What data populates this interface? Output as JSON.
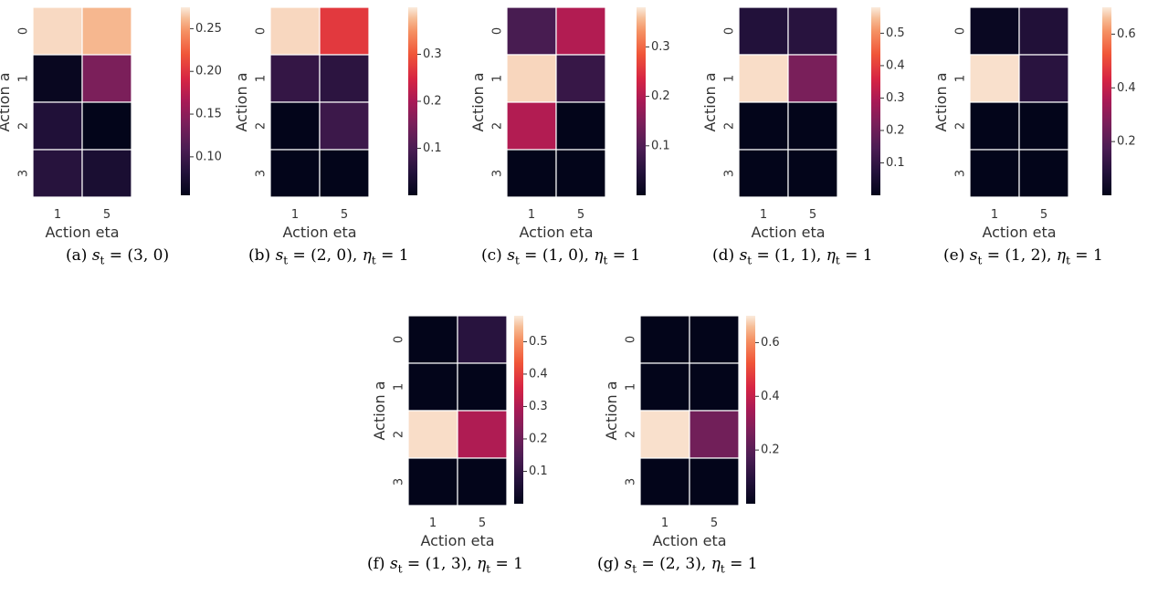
{
  "chart_data": [
    {
      "type": "heatmap",
      "caption": {
        "tag": "(a)",
        "s_label": "s",
        "s_sub": "t",
        "s_value": "= (3, 0)",
        "eta_label": "",
        "eta_sub": "",
        "eta_value": ""
      },
      "xlabel": "Action eta",
      "ylabel": "Action a",
      "x_categories": [
        "1",
        "5"
      ],
      "y_categories": [
        "0",
        "1",
        "2",
        "3"
      ],
      "values": [
        [
          0.27,
          0.26
        ],
        [
          0.06,
          0.14
        ],
        [
          0.08,
          0.05
        ],
        [
          0.085,
          0.075
        ]
      ],
      "colorbar": {
        "range": [
          0.055,
          0.275
        ],
        "ticks": [
          0.1,
          0.15,
          0.2,
          0.25
        ],
        "tick_labels": [
          "0.10",
          "0.15",
          "0.20",
          "0.25"
        ]
      }
    },
    {
      "type": "heatmap",
      "caption": {
        "tag": "(b)",
        "s_label": "s",
        "s_sub": "t",
        "s_value": "= (2, 0),",
        "eta_label": "η",
        "eta_sub": "t",
        "eta_value": "= 1"
      },
      "xlabel": "Action eta",
      "ylabel": "Action a",
      "x_categories": [
        "1",
        "5"
      ],
      "y_categories": [
        "0",
        "1",
        "2",
        "3"
      ],
      "values": [
        [
          0.39,
          0.27
        ],
        [
          0.07,
          0.06
        ],
        [
          0.0,
          0.08
        ],
        [
          0.0,
          0.0
        ]
      ],
      "colorbar": {
        "range": [
          0.0,
          0.4
        ],
        "ticks": [
          0.1,
          0.2,
          0.3
        ],
        "tick_labels": [
          "0.1",
          "0.2",
          "0.3"
        ]
      }
    },
    {
      "type": "heatmap",
      "caption": {
        "tag": "(c)",
        "s_label": "s",
        "s_sub": "t",
        "s_value": "= (1, 0),",
        "eta_label": "η",
        "eta_sub": "t",
        "eta_value": "= 1"
      },
      "xlabel": "Action eta",
      "ylabel": "Action a",
      "x_categories": [
        "1",
        "5"
      ],
      "y_categories": [
        "0",
        "1",
        "2",
        "3"
      ],
      "values": [
        [
          0.09,
          0.2
        ],
        [
          0.37,
          0.07
        ],
        [
          0.2,
          0.0
        ],
        [
          0.0,
          0.0
        ]
      ],
      "colorbar": {
        "range": [
          0.0,
          0.38
        ],
        "ticks": [
          0.1,
          0.2,
          0.3
        ],
        "tick_labels": [
          "0.1",
          "0.2",
          "0.3"
        ]
      }
    },
    {
      "type": "heatmap",
      "caption": {
        "tag": "(d)",
        "s_label": "s",
        "s_sub": "t",
        "s_value": "= (1, 1),",
        "eta_label": "η",
        "eta_sub": "t",
        "eta_value": "= 1"
      },
      "xlabel": "Action eta",
      "ylabel": "Action a",
      "x_categories": [
        "1",
        "5"
      ],
      "y_categories": [
        "0",
        "1",
        "2",
        "3"
      ],
      "values": [
        [
          0.07,
          0.08
        ],
        [
          0.57,
          0.22
        ],
        [
          0.0,
          0.0
        ],
        [
          0.0,
          0.0
        ]
      ],
      "colorbar": {
        "range": [
          0.0,
          0.58
        ],
        "ticks": [
          0.1,
          0.2,
          0.3,
          0.4,
          0.5
        ],
        "tick_labels": [
          "0.1",
          "0.2",
          "0.3",
          "0.4",
          "0.5"
        ]
      }
    },
    {
      "type": "heatmap",
      "caption": {
        "tag": "(e)",
        "s_label": "s",
        "s_sub": "t",
        "s_value": "= (1, 2),",
        "eta_label": "η",
        "eta_sub": "t",
        "eta_value": "= 1"
      },
      "xlabel": "Action eta",
      "ylabel": "Action a",
      "x_categories": [
        "1",
        "5"
      ],
      "y_categories": [
        "0",
        "1",
        "2",
        "3"
      ],
      "values": [
        [
          0.02,
          0.08
        ],
        [
          0.69,
          0.1
        ],
        [
          0.0,
          0.0
        ],
        [
          0.0,
          0.0
        ]
      ],
      "colorbar": {
        "range": [
          0.0,
          0.7
        ],
        "ticks": [
          0.2,
          0.4,
          0.6
        ],
        "tick_labels": [
          "0.2",
          "0.4",
          "0.6"
        ]
      }
    },
    {
      "type": "heatmap",
      "caption": {
        "tag": "(f)",
        "s_label": "s",
        "s_sub": "t",
        "s_value": "= (1, 3),",
        "eta_label": "η",
        "eta_sub": "t",
        "eta_value": "= 1"
      },
      "xlabel": "Action eta",
      "ylabel": "Action a",
      "x_categories": [
        "1",
        "5"
      ],
      "y_categories": [
        "0",
        "1",
        "2",
        "3"
      ],
      "values": [
        [
          0.0,
          0.08
        ],
        [
          0.0,
          0.0
        ],
        [
          0.57,
          0.3
        ],
        [
          0.0,
          0.0
        ]
      ],
      "colorbar": {
        "range": [
          0.0,
          0.58
        ],
        "ticks": [
          0.1,
          0.2,
          0.3,
          0.4,
          0.5
        ],
        "tick_labels": [
          "0.1",
          "0.2",
          "0.3",
          "0.4",
          "0.5"
        ]
      }
    },
    {
      "type": "heatmap",
      "caption": {
        "tag": "(g)",
        "s_label": "s",
        "s_sub": "t",
        "s_value": "= (2, 3),",
        "eta_label": "η",
        "eta_sub": "t",
        "eta_value": "= 1"
      },
      "xlabel": "Action eta",
      "ylabel": "Action a",
      "x_categories": [
        "1",
        "5"
      ],
      "y_categories": [
        "0",
        "1",
        "2",
        "3"
      ],
      "values": [
        [
          0.0,
          0.0
        ],
        [
          0.0,
          0.0
        ],
        [
          0.69,
          0.25
        ],
        [
          0.0,
          0.0
        ]
      ],
      "colorbar": {
        "range": [
          0.0,
          0.7
        ],
        "ticks": [
          0.2,
          0.4,
          0.6
        ],
        "tick_labels": [
          "0.2",
          "0.4",
          "0.6"
        ]
      }
    }
  ],
  "colormap": "rocket",
  "cell_separator_color": "#ffffff"
}
